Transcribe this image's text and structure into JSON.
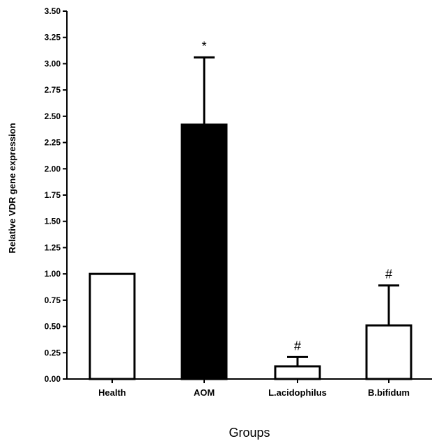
{
  "chart_data": {
    "type": "bar",
    "categories": [
      "Health",
      "AOM",
      "L.acidophilus",
      "B.bifidum"
    ],
    "values": [
      1.0,
      2.42,
      0.12,
      0.51
    ],
    "error_upper": [
      0.0,
      3.06,
      0.21,
      0.89
    ],
    "annotations": [
      "",
      "*",
      "#",
      "#"
    ],
    "bar_fills": [
      "#ffffff",
      "#000000",
      "#ffffff",
      "#ffffff"
    ],
    "xlabel": "Groups",
    "ylabel": "Relative VDR gene expression",
    "ylim": [
      0,
      3.5
    ],
    "yticks": [
      "0.00",
      "0.25",
      "0.50",
      "0.75",
      "1.00",
      "1.25",
      "1.50",
      "1.75",
      "2.00",
      "2.25",
      "2.50",
      "2.75",
      "3.00",
      "3.25",
      "3.50"
    ],
    "grid": false
  }
}
